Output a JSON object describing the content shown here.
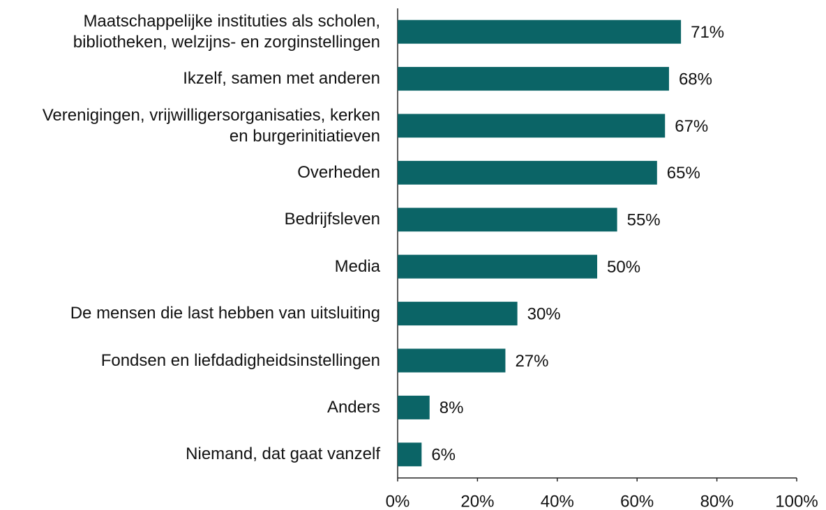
{
  "chart_data": {
    "type": "bar",
    "orientation": "horizontal",
    "categories": [
      "Maatschappelijke instituties als scholen,\nbibliotheken, welzijns- en zorginstellingen",
      "Ikzelf, samen met anderen",
      "Verenigingen, vrijwilligersorganisaties, kerken\nen burgerinitiatieven",
      "Overheden",
      "Bedrijfsleven",
      "Media",
      "De mensen die last hebben van uitsluiting",
      "Fondsen en liefdadigheidsinstellingen",
      "Anders",
      "Niemand, dat gaat vanzelf"
    ],
    "values": [
      71,
      68,
      67,
      65,
      55,
      50,
      30,
      27,
      8,
      6
    ],
    "value_labels": [
      "71%",
      "68%",
      "67%",
      "65%",
      "55%",
      "50%",
      "30%",
      "27%",
      "8%",
      "6%"
    ],
    "color": "#0b6466",
    "xlim": [
      0,
      100
    ],
    "xticks": [
      {
        "value": 0,
        "label": "0%"
      },
      {
        "value": 20,
        "label": "20%"
      },
      {
        "value": 40,
        "label": "40%"
      },
      {
        "value": 60,
        "label": "60%"
      },
      {
        "value": 80,
        "label": "80%"
      },
      {
        "value": 100,
        "label": "100%"
      }
    ],
    "grid": false
  }
}
